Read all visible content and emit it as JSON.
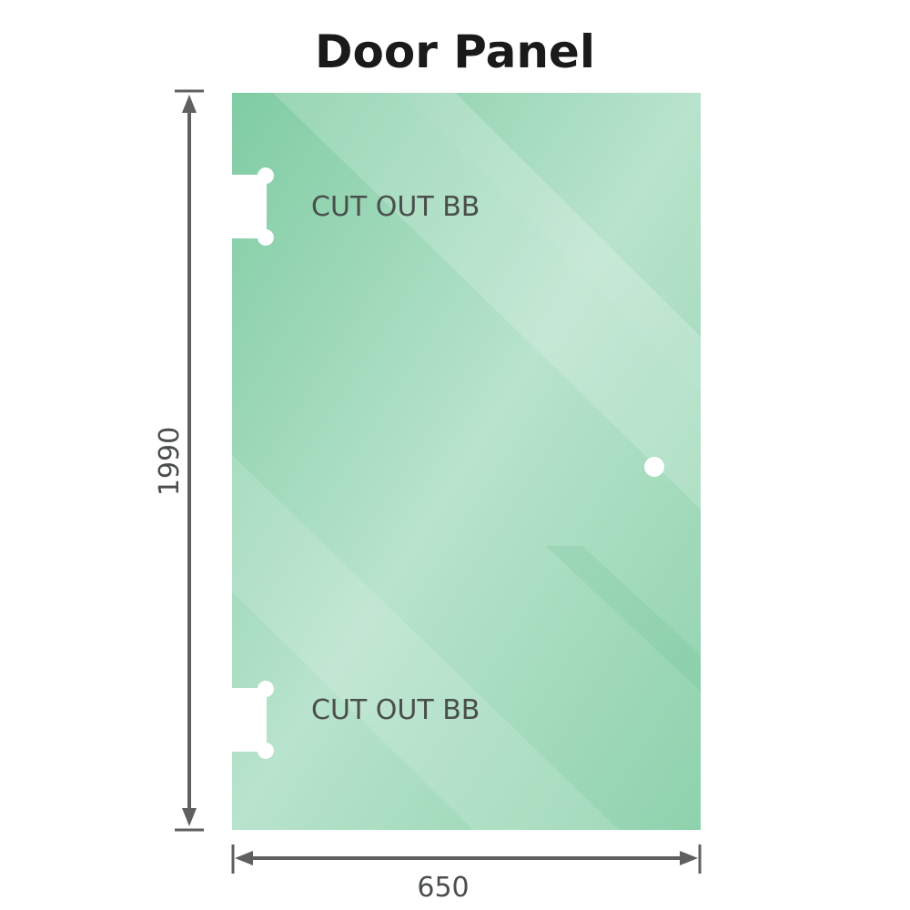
{
  "title": "Door Panel",
  "panel": {
    "color": "#86cfa9",
    "cutout_labels": [
      "CUT OUT BB",
      "CUT OUT BB"
    ]
  },
  "dimensions": {
    "height": "1990",
    "width": "650",
    "line_color": "#5f5f5f"
  }
}
